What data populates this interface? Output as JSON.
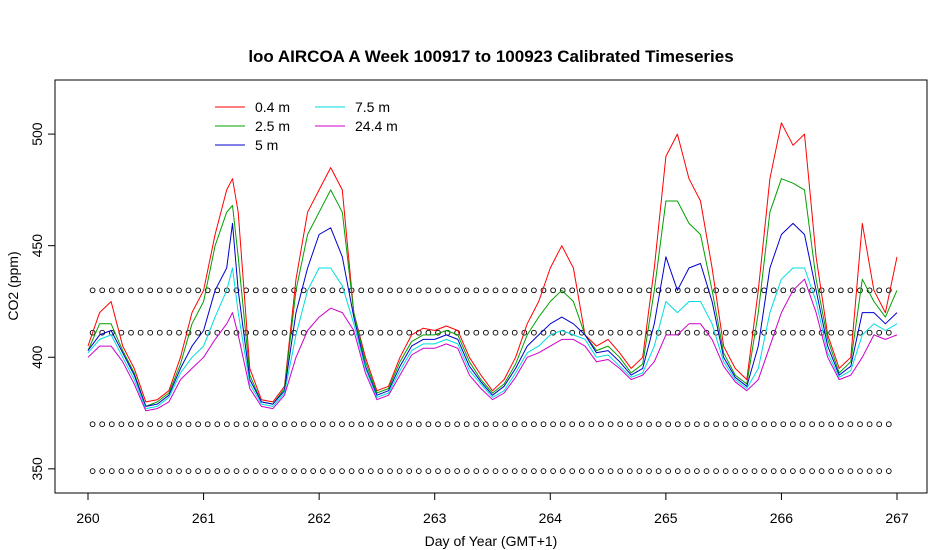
{
  "chart_data": {
    "type": "line",
    "title": "loo AIRCOA A  Week 100917 to 100923  Calibrated Timeseries",
    "xlabel": "Day of Year (GMT+1)",
    "ylabel": "CO2 (ppm)",
    "xlim": [
      260,
      267
    ],
    "ylim": [
      345,
      522
    ],
    "x_ticks": [
      260,
      261,
      262,
      263,
      264,
      265,
      266,
      267
    ],
    "y_ticks": [
      350,
      400,
      450,
      500
    ],
    "grid": false,
    "legend": {
      "placement": "top-left",
      "columns": 2
    },
    "x": [
      260.0,
      260.1,
      260.2,
      260.3,
      260.4,
      260.5,
      260.6,
      260.7,
      260.8,
      260.9,
      261.0,
      261.1,
      261.2,
      261.25,
      261.3,
      261.4,
      261.5,
      261.6,
      261.7,
      261.8,
      261.9,
      262.0,
      262.1,
      262.2,
      262.3,
      262.4,
      262.5,
      262.6,
      262.7,
      262.8,
      262.9,
      263.0,
      263.1,
      263.2,
      263.3,
      263.4,
      263.5,
      263.6,
      263.7,
      263.8,
      263.9,
      264.0,
      264.1,
      264.2,
      264.3,
      264.4,
      264.5,
      264.6,
      264.7,
      264.8,
      264.9,
      265.0,
      265.1,
      265.2,
      265.3,
      265.4,
      265.5,
      265.6,
      265.7,
      265.8,
      265.9,
      266.0,
      266.1,
      266.2,
      266.3,
      266.4,
      266.5,
      266.6,
      266.7,
      266.8,
      266.9,
      267.0
    ],
    "series": [
      {
        "name": "0.4 m",
        "color": "#ff0000",
        "values": [
          405,
          420,
          425,
          405,
          395,
          380,
          381,
          385,
          400,
          420,
          430,
          455,
          475,
          480,
          465,
          395,
          381,
          380,
          387,
          435,
          465,
          475,
          485,
          475,
          420,
          400,
          385,
          387,
          400,
          410,
          413,
          412,
          414,
          412,
          400,
          392,
          385,
          390,
          400,
          415,
          425,
          440,
          450,
          440,
          410,
          405,
          408,
          402,
          395,
          400,
          440,
          490,
          500,
          480,
          470,
          440,
          405,
          395,
          390,
          430,
          480,
          505,
          495,
          500,
          445,
          410,
          395,
          400,
          460,
          430,
          420,
          445
        ]
      },
      {
        "name": "2.5 m",
        "color": "#00a000",
        "values": [
          403,
          415,
          415,
          403,
          393,
          378,
          380,
          384,
          397,
          415,
          425,
          450,
          465,
          468,
          445,
          392,
          380,
          379,
          386,
          430,
          455,
          465,
          475,
          465,
          420,
          398,
          384,
          386,
          398,
          407,
          410,
          410,
          412,
          410,
          398,
          390,
          384,
          388,
          397,
          410,
          418,
          425,
          430,
          425,
          410,
          403,
          405,
          400,
          393,
          397,
          430,
          470,
          470,
          460,
          455,
          430,
          402,
          392,
          388,
          420,
          465,
          480,
          478,
          475,
          435,
          408,
          393,
          398,
          435,
          425,
          418,
          430
        ]
      },
      {
        "name": "5 m",
        "color": "#0000cc",
        "values": [
          403,
          410,
          412,
          402,
          392,
          378,
          379,
          383,
          395,
          405,
          412,
          430,
          440,
          460,
          430,
          390,
          380,
          379,
          385,
          420,
          440,
          455,
          458,
          445,
          418,
          396,
          383,
          385,
          396,
          405,
          408,
          408,
          410,
          408,
          396,
          389,
          383,
          387,
          395,
          405,
          410,
          415,
          418,
          415,
          410,
          402,
          403,
          398,
          392,
          395,
          415,
          445,
          430,
          440,
          442,
          425,
          400,
          391,
          387,
          405,
          440,
          455,
          460,
          455,
          430,
          405,
          392,
          396,
          420,
          420,
          415,
          420
        ]
      },
      {
        "name": "7.5 m",
        "color": "#00dddd",
        "values": [
          402,
          408,
          410,
          400,
          390,
          377,
          378,
          382,
          393,
          400,
          405,
          418,
          430,
          440,
          420,
          388,
          379,
          378,
          384,
          410,
          430,
          440,
          440,
          432,
          415,
          395,
          382,
          384,
          394,
          403,
          406,
          406,
          408,
          406,
          394,
          388,
          382,
          385,
          393,
          402,
          405,
          410,
          412,
          410,
          408,
          400,
          401,
          396,
          391,
          393,
          405,
          425,
          420,
          425,
          425,
          415,
          398,
          390,
          386,
          395,
          420,
          435,
          440,
          440,
          425,
          402,
          391,
          394,
          410,
          415,
          412,
          415
        ]
      },
      {
        "name": "24.4 m",
        "color": "#cc00cc",
        "values": [
          400,
          405,
          405,
          398,
          388,
          376,
          377,
          380,
          390,
          395,
          400,
          408,
          415,
          420,
          410,
          386,
          378,
          377,
          383,
          400,
          412,
          418,
          422,
          420,
          412,
          393,
          381,
          383,
          392,
          401,
          404,
          404,
          406,
          404,
          392,
          386,
          381,
          384,
          391,
          400,
          402,
          405,
          408,
          408,
          405,
          398,
          399,
          395,
          390,
          392,
          398,
          410,
          410,
          415,
          415,
          408,
          396,
          389,
          385,
          390,
          405,
          420,
          430,
          435,
          420,
          400,
          390,
          392,
          400,
          410,
          408,
          410
        ]
      }
    ],
    "marker_rows": [
      {
        "y": 430,
        "symbol": "o"
      },
      {
        "y": 411,
        "symbol": "o"
      },
      {
        "y": 370,
        "symbol": "o"
      },
      {
        "y": 349,
        "symbol": "o"
      }
    ]
  }
}
